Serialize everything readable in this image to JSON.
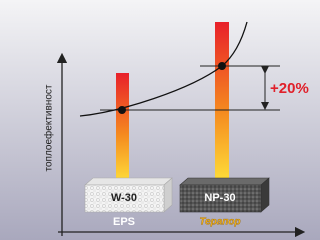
{
  "y_axis_label": "топлоефективност",
  "difference_label": "+20%",
  "products": [
    {
      "grade": "W-30",
      "material": "EPS"
    },
    {
      "grade": "NP-30",
      "material": "Терапор"
    }
  ]
}
